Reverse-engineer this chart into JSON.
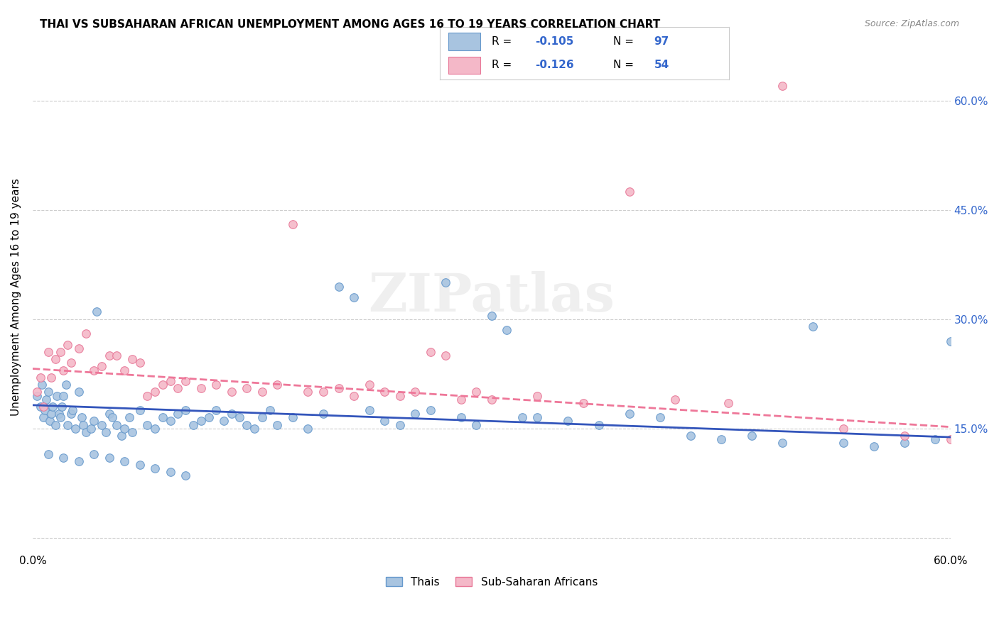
{
  "title": "THAI VS SUBSAHARAN AFRICAN UNEMPLOYMENT AMONG AGES 16 TO 19 YEARS CORRELATION CHART",
  "source": "Source: ZipAtlas.com",
  "ylabel": "Unemployment Among Ages 16 to 19 years",
  "xlim": [
    0.0,
    0.6
  ],
  "ylim": [
    -0.02,
    0.68
  ],
  "ytick_vals": [
    0.0,
    0.15,
    0.3,
    0.45,
    0.6
  ],
  "ytick_labels": [
    "",
    "15.0%",
    "30.0%",
    "45.0%",
    "60.0%"
  ],
  "thai_color": "#a8c4e0",
  "thai_edge_color": "#6699cc",
  "subsaharan_color": "#f4b8c8",
  "subsaharan_edge_color": "#e87898",
  "thai_line_color": "#3355bb",
  "subsaharan_line_color": "#ee7799",
  "watermark": "ZIPatlas",
  "background_color": "#ffffff",
  "grid_color": "#cccccc",
  "thai_line_y0": 0.182,
  "thai_line_y1": 0.138,
  "sub_line_y0": 0.232,
  "sub_line_y1": 0.152,
  "thai_x": [
    0.003,
    0.005,
    0.006,
    0.007,
    0.008,
    0.009,
    0.01,
    0.011,
    0.012,
    0.013,
    0.015,
    0.016,
    0.017,
    0.018,
    0.019,
    0.02,
    0.022,
    0.023,
    0.025,
    0.026,
    0.028,
    0.03,
    0.032,
    0.033,
    0.035,
    0.038,
    0.04,
    0.042,
    0.045,
    0.048,
    0.05,
    0.052,
    0.055,
    0.058,
    0.06,
    0.063,
    0.065,
    0.07,
    0.075,
    0.08,
    0.085,
    0.09,
    0.095,
    0.1,
    0.105,
    0.11,
    0.115,
    0.12,
    0.125,
    0.13,
    0.135,
    0.14,
    0.145,
    0.15,
    0.155,
    0.16,
    0.17,
    0.18,
    0.19,
    0.2,
    0.21,
    0.22,
    0.23,
    0.24,
    0.25,
    0.26,
    0.27,
    0.28,
    0.29,
    0.3,
    0.31,
    0.32,
    0.33,
    0.35,
    0.37,
    0.39,
    0.41,
    0.43,
    0.45,
    0.47,
    0.49,
    0.51,
    0.53,
    0.55,
    0.57,
    0.59,
    0.6,
    0.01,
    0.02,
    0.03,
    0.04,
    0.05,
    0.06,
    0.07,
    0.08,
    0.09,
    0.1
  ],
  "thai_y": [
    0.195,
    0.18,
    0.21,
    0.165,
    0.175,
    0.19,
    0.2,
    0.16,
    0.17,
    0.18,
    0.155,
    0.195,
    0.17,
    0.165,
    0.18,
    0.195,
    0.21,
    0.155,
    0.17,
    0.175,
    0.15,
    0.2,
    0.165,
    0.155,
    0.145,
    0.15,
    0.16,
    0.31,
    0.155,
    0.145,
    0.17,
    0.165,
    0.155,
    0.14,
    0.15,
    0.165,
    0.145,
    0.175,
    0.155,
    0.15,
    0.165,
    0.16,
    0.17,
    0.175,
    0.155,
    0.16,
    0.165,
    0.175,
    0.16,
    0.17,
    0.165,
    0.155,
    0.15,
    0.165,
    0.175,
    0.155,
    0.165,
    0.15,
    0.17,
    0.345,
    0.33,
    0.175,
    0.16,
    0.155,
    0.17,
    0.175,
    0.35,
    0.165,
    0.155,
    0.305,
    0.285,
    0.165,
    0.165,
    0.16,
    0.155,
    0.17,
    0.165,
    0.14,
    0.135,
    0.14,
    0.13,
    0.29,
    0.13,
    0.125,
    0.13,
    0.135,
    0.27,
    0.115,
    0.11,
    0.105,
    0.115,
    0.11,
    0.105,
    0.1,
    0.095,
    0.09,
    0.085
  ],
  "subsaharan_x": [
    0.003,
    0.005,
    0.007,
    0.01,
    0.012,
    0.015,
    0.018,
    0.02,
    0.023,
    0.025,
    0.03,
    0.035,
    0.04,
    0.045,
    0.05,
    0.055,
    0.06,
    0.065,
    0.07,
    0.075,
    0.08,
    0.085,
    0.09,
    0.095,
    0.1,
    0.11,
    0.12,
    0.13,
    0.14,
    0.15,
    0.16,
    0.17,
    0.18,
    0.19,
    0.2,
    0.21,
    0.22,
    0.23,
    0.24,
    0.25,
    0.26,
    0.27,
    0.28,
    0.29,
    0.3,
    0.33,
    0.36,
    0.39,
    0.42,
    0.455,
    0.49,
    0.53,
    0.57,
    0.6
  ],
  "subsaharan_y": [
    0.2,
    0.22,
    0.18,
    0.255,
    0.22,
    0.245,
    0.255,
    0.23,
    0.265,
    0.24,
    0.26,
    0.28,
    0.23,
    0.235,
    0.25,
    0.25,
    0.23,
    0.245,
    0.24,
    0.195,
    0.2,
    0.21,
    0.215,
    0.205,
    0.215,
    0.205,
    0.21,
    0.2,
    0.205,
    0.2,
    0.21,
    0.43,
    0.2,
    0.2,
    0.205,
    0.195,
    0.21,
    0.2,
    0.195,
    0.2,
    0.255,
    0.25,
    0.19,
    0.2,
    0.19,
    0.195,
    0.185,
    0.475,
    0.19,
    0.185,
    0.62,
    0.15,
    0.14,
    0.135
  ]
}
